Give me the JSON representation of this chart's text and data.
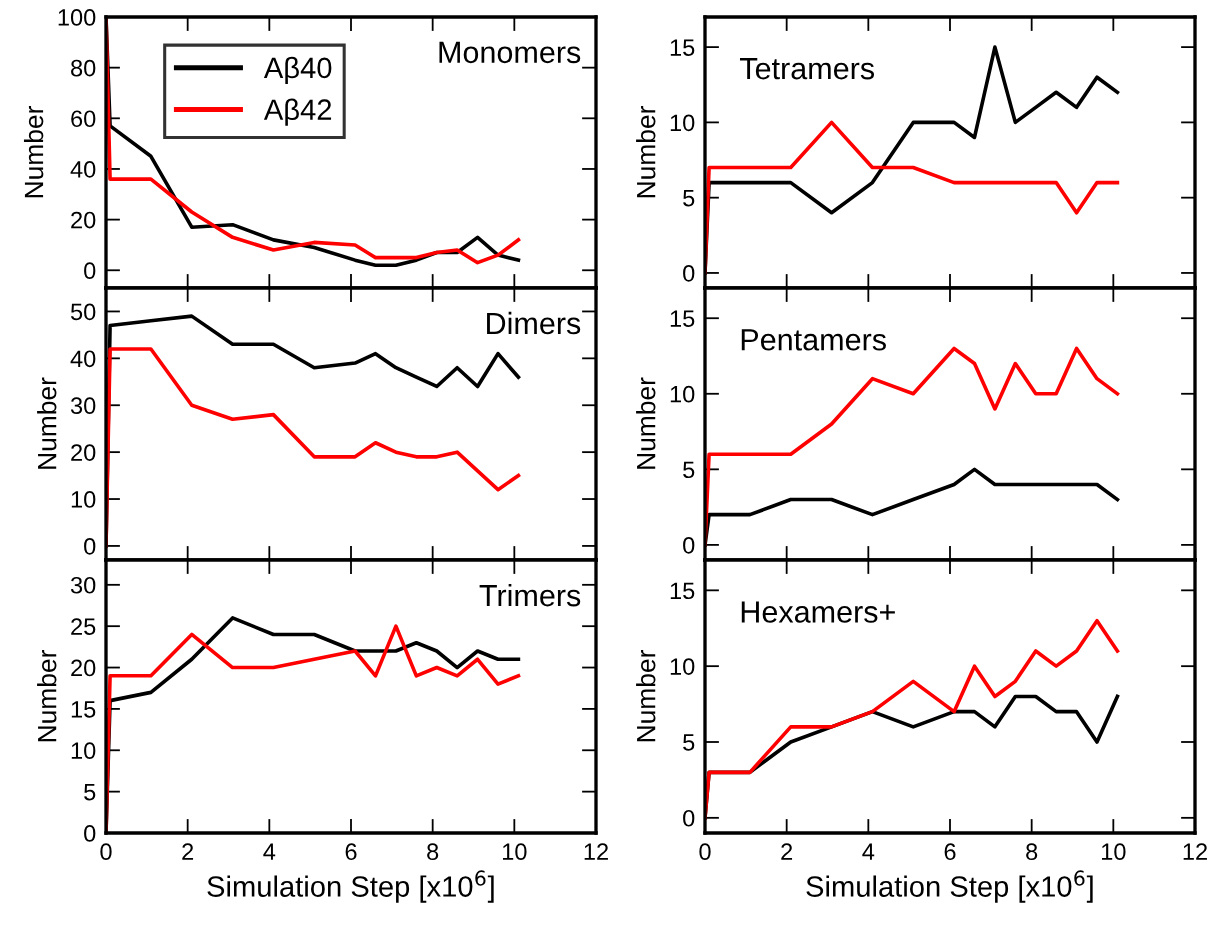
{
  "chart_data": [
    {
      "type": "line",
      "title": "Monomers",
      "ylabel": "Number",
      "x": [
        0,
        0.1,
        1.1,
        2.1,
        3.1,
        4.1,
        5.1,
        6.1,
        6.6,
        7.1,
        7.6,
        8.1,
        8.6,
        9.1,
        9.6,
        10.1
      ],
      "xlim": [
        0,
        12
      ],
      "xticks": [
        0,
        2,
        4,
        6,
        8,
        10,
        12
      ],
      "ylim": [
        -7,
        100
      ],
      "yticks": [
        0,
        20,
        40,
        60,
        80,
        100
      ],
      "tick_labels": "y",
      "legend": "top left",
      "series": [
        {
          "name": "Aβ40",
          "color": "#000000",
          "values": [
            100,
            57,
            45,
            17,
            18,
            12,
            9,
            4,
            2,
            2,
            4,
            7,
            7,
            13,
            6,
            4
          ]
        },
        {
          "name": "Aβ42",
          "color": "#ff0000",
          "values": [
            100,
            36,
            36,
            23,
            13,
            8,
            11,
            10,
            5,
            5,
            5,
            7,
            8,
            3,
            6,
            12
          ]
        }
      ]
    },
    {
      "type": "line",
      "title": "Tetramers",
      "ylabel": "Number",
      "x": [
        0,
        0.1,
        1.1,
        2.1,
        3.1,
        4.1,
        5.1,
        6.1,
        6.6,
        7.1,
        7.6,
        8.1,
        8.6,
        9.1,
        9.6,
        10.1
      ],
      "xlim": [
        0,
        12
      ],
      "xticks": [
        0,
        2,
        4,
        6,
        8,
        10,
        12
      ],
      "ylim": [
        -1,
        17
      ],
      "yticks": [
        0,
        5,
        10,
        15
      ],
      "tick_labels": "y",
      "series": [
        {
          "color": "#000000",
          "values": [
            0,
            6,
            6,
            6,
            4,
            6,
            10,
            10,
            9,
            15,
            10,
            11,
            12,
            11,
            13,
            12
          ]
        },
        {
          "color": "#ff0000",
          "values": [
            0,
            7,
            7,
            7,
            10,
            7,
            7,
            6,
            6,
            6,
            6,
            6,
            6,
            4,
            6,
            6
          ]
        }
      ]
    },
    {
      "type": "line",
      "title": "Dimers",
      "ylabel": "Number",
      "x": [
        0,
        0.1,
        1.1,
        2.1,
        3.1,
        4.1,
        5.1,
        6.1,
        6.6,
        7.1,
        7.6,
        8.1,
        8.6,
        9.1,
        9.6,
        10.1
      ],
      "xlim": [
        0,
        12
      ],
      "xticks": [
        0,
        2,
        4,
        6,
        8,
        10,
        12
      ],
      "ylim": [
        -3,
        55
      ],
      "yticks": [
        0,
        10,
        20,
        30,
        40,
        50
      ],
      "tick_labels": "y",
      "series": [
        {
          "color": "#000000",
          "values": [
            0,
            47,
            48,
            49,
            43,
            43,
            38,
            39,
            41,
            38,
            36,
            34,
            38,
            34,
            41,
            36
          ]
        },
        {
          "color": "#ff0000",
          "values": [
            0,
            42,
            42,
            30,
            27,
            28,
            19,
            19,
            22,
            20,
            19,
            19,
            20,
            16,
            12,
            15
          ]
        }
      ]
    },
    {
      "type": "line",
      "title": "Pentamers",
      "ylabel": "Number",
      "x": [
        0,
        0.1,
        1.1,
        2.1,
        3.1,
        4.1,
        5.1,
        6.1,
        6.6,
        7.1,
        7.6,
        8.1,
        8.6,
        9.1,
        9.6,
        10.1
      ],
      "xlim": [
        0,
        12
      ],
      "xticks": [
        0,
        2,
        4,
        6,
        8,
        10,
        12
      ],
      "ylim": [
        -1,
        17
      ],
      "yticks": [
        0,
        5,
        10,
        15
      ],
      "tick_labels": "y",
      "series": [
        {
          "color": "#000000",
          "values": [
            0,
            2,
            2,
            3,
            3,
            2,
            3,
            4,
            5,
            4,
            4,
            4,
            4,
            4,
            4,
            3
          ]
        },
        {
          "color": "#ff0000",
          "values": [
            0,
            6,
            6,
            6,
            8,
            11,
            10,
            13,
            12,
            9,
            12,
            10,
            10,
            13,
            11,
            10
          ]
        }
      ]
    },
    {
      "type": "line",
      "title": "Trimers",
      "ylabel": "Number",
      "xlabel": "Simulation Step [x10$^{6}$]",
      "x": [
        0,
        0.1,
        1.1,
        2.1,
        3.1,
        4.1,
        5.1,
        6.1,
        6.6,
        7.1,
        7.6,
        8.1,
        8.6,
        9.1,
        9.6,
        10.1
      ],
      "xlim": [
        0,
        12
      ],
      "xticks": [
        0,
        2,
        4,
        6,
        8,
        10,
        12
      ],
      "ylim": [
        0,
        33
      ],
      "yticks": [
        0,
        5,
        10,
        15,
        20,
        25,
        30
      ],
      "series": [
        {
          "color": "#000000",
          "values": [
            0,
            16,
            17,
            21,
            26,
            24,
            24,
            22,
            22,
            22,
            23,
            22,
            20,
            22,
            21,
            21
          ]
        },
        {
          "color": "#ff0000",
          "values": [
            0,
            19,
            19,
            24,
            20,
            20,
            21,
            22,
            19,
            25,
            19,
            20,
            19,
            21,
            18,
            19
          ]
        }
      ]
    },
    {
      "type": "line",
      "title": "Hexamers+",
      "ylabel": "Number",
      "xlabel": "Simulation Step [x10$^{6}$]",
      "x": [
        0,
        0.1,
        1.1,
        2.1,
        3.1,
        4.1,
        5.1,
        6.1,
        6.6,
        7.1,
        7.6,
        8.1,
        8.6,
        9.1,
        9.6,
        10.1
      ],
      "xlim": [
        0,
        12
      ],
      "xticks": [
        0,
        2,
        4,
        6,
        8,
        10,
        12
      ],
      "ylim": [
        -1,
        17
      ],
      "yticks": [
        0,
        5,
        10,
        15
      ],
      "series": [
        {
          "color": "#000000",
          "values": [
            0,
            3,
            3,
            5,
            6,
            7,
            6,
            7,
            7,
            6,
            8,
            8,
            7,
            7,
            5,
            8
          ]
        },
        {
          "color": "#ff0000",
          "values": [
            0,
            3,
            3,
            6,
            6,
            7,
            9,
            7,
            10,
            8,
            9,
            11,
            10,
            11,
            13,
            11
          ]
        }
      ]
    }
  ]
}
